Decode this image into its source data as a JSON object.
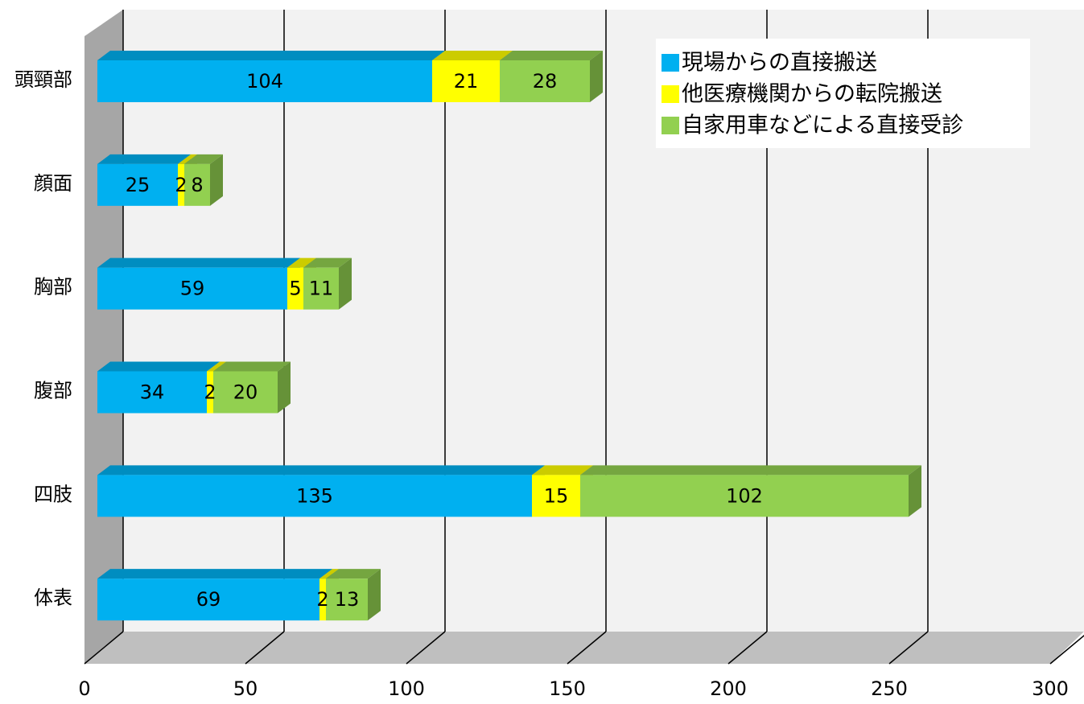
{
  "chart_data": {
    "type": "bar3d_stacked_horizontal",
    "categories": [
      "頭頸部",
      "顔面",
      "胸部",
      "腹部",
      "四肢",
      "体表"
    ],
    "series": [
      {
        "name": "現場からの直接搬送",
        "color": "#00b0f0",
        "values": [
          104,
          25,
          59,
          34,
          135,
          69
        ]
      },
      {
        "name": "他医療機関からの転院搬送",
        "color": "#ffff00",
        "values": [
          21,
          2,
          5,
          2,
          15,
          2
        ]
      },
      {
        "name": "自家用車などによる直接受診",
        "color": "#92d050",
        "values": [
          28,
          8,
          11,
          20,
          102,
          13
        ]
      }
    ],
    "xlim": [
      0,
      300
    ],
    "xticks": [
      0,
      50,
      100,
      150,
      200,
      250,
      300
    ],
    "grid": true,
    "legend": "top-right"
  }
}
